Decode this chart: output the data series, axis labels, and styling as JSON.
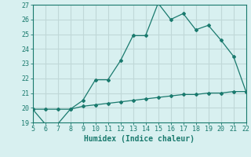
{
  "title": "",
  "xlabel": "Humidex (Indice chaleur)",
  "ylabel": "",
  "xlim": [
    5,
    22
  ],
  "ylim": [
    19,
    27
  ],
  "xticks": [
    5,
    6,
    7,
    8,
    9,
    10,
    11,
    12,
    13,
    14,
    15,
    16,
    17,
    18,
    19,
    20,
    21,
    22
  ],
  "yticks": [
    19,
    20,
    21,
    22,
    23,
    24,
    25,
    26,
    27
  ],
  "line1_x": [
    5,
    6,
    7,
    8,
    9,
    10,
    11,
    12,
    13,
    14,
    15,
    16,
    17,
    18,
    19,
    20,
    21,
    22
  ],
  "line1_y": [
    19.9,
    18.9,
    18.9,
    19.9,
    20.5,
    21.9,
    21.9,
    23.2,
    24.9,
    24.9,
    27.1,
    26.0,
    26.4,
    25.3,
    25.6,
    24.6,
    23.5,
    21.1
  ],
  "line2_x": [
    5,
    6,
    7,
    8,
    9,
    10,
    11,
    12,
    13,
    14,
    15,
    16,
    17,
    18,
    19,
    20,
    21,
    22
  ],
  "line2_y": [
    19.9,
    19.9,
    19.9,
    19.9,
    20.1,
    20.2,
    20.3,
    20.4,
    20.5,
    20.6,
    20.7,
    20.8,
    20.9,
    20.9,
    21.0,
    21.0,
    21.1,
    21.1
  ],
  "line_color": "#1a7a6e",
  "bg_color": "#d8f0f0",
  "grid_color": "#c0d8d8",
  "font_family": "monospace",
  "tick_fontsize": 6,
  "xlabel_fontsize": 7
}
